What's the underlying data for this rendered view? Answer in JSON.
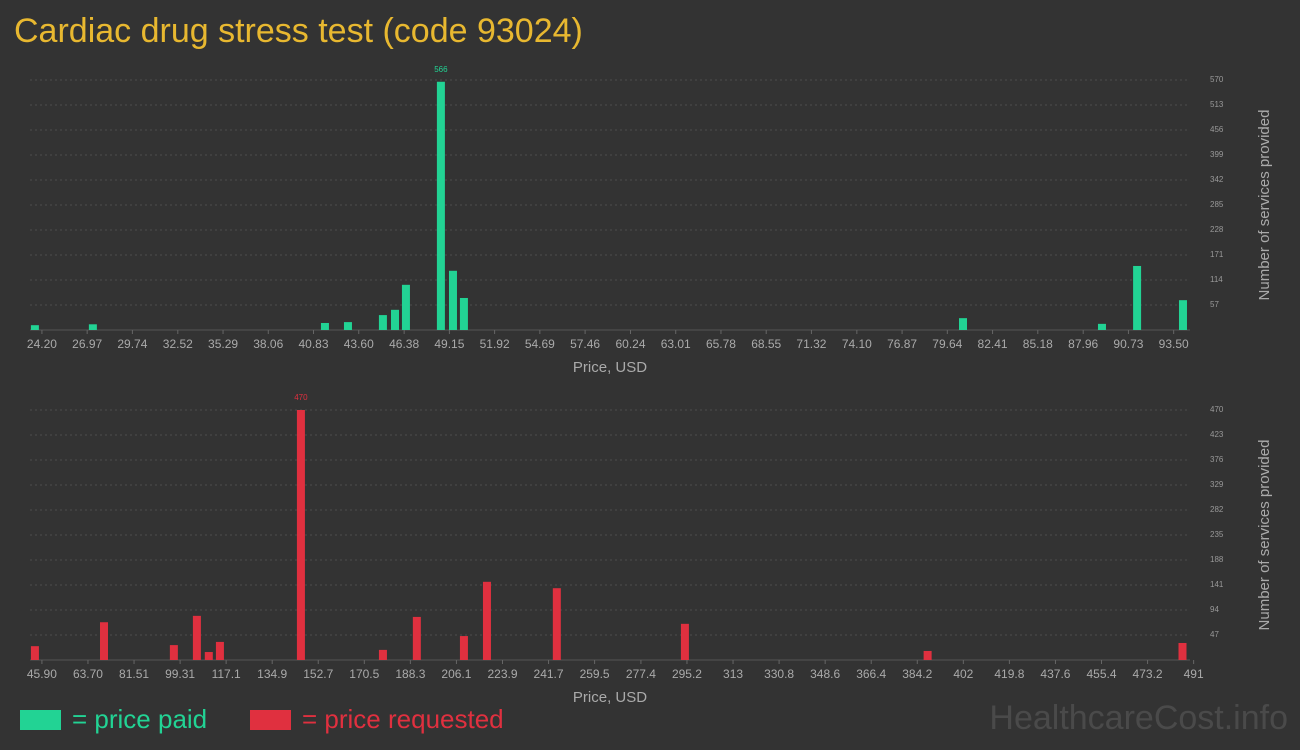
{
  "title": "Cardiac drug stress test (code 93024)",
  "watermark": "HealthcareCost.info",
  "chart_data": [
    {
      "type": "bar",
      "xlabel": "Price, USD",
      "ylabel": "Number of services provided",
      "grid": true,
      "x": [
        23.77,
        27.32,
        41.53,
        42.94,
        45.08,
        45.82,
        46.49,
        48.63,
        49.37,
        50.04,
        80.6,
        89.11,
        91.26,
        94.07
      ],
      "series": [
        {
          "name": "= price paid",
          "color": "#22d394",
          "values": [
            11,
            13,
            16,
            18,
            34,
            46,
            103,
            566,
            135,
            73,
            27,
            14,
            146,
            68
          ]
        }
      ],
      "xlim": [
        23.47,
        94.5
      ],
      "xticks": [
        {
          "value": 24.2,
          "label": "24.20"
        },
        26.97,
        29.74,
        32.52,
        35.29,
        38.06,
        40.83,
        {
          "value": 43.6,
          "label": "43.60"
        },
        46.38,
        49.15,
        51.92,
        54.69,
        57.46,
        60.24,
        63.01,
        65.78,
        68.55,
        71.32,
        {
          "value": 74.1,
          "label": "74.10"
        },
        76.87,
        79.64,
        82.41,
        85.18,
        87.96,
        90.73,
        {
          "value": 93.5,
          "label": "93.50"
        }
      ],
      "ylim": [
        0,
        570
      ],
      "yticks": [
        57,
        114,
        171,
        228,
        285,
        342,
        399,
        456,
        513,
        570
      ]
    },
    {
      "type": "bar",
      "xlabel": "Price, USD",
      "ylabel": "Number of services provided",
      "grid": true,
      "x": [
        43.2,
        69.9,
        96.9,
        105.8,
        110.4,
        114.7,
        146.0,
        177.7,
        190.8,
        209.0,
        217.9,
        244.9,
        294.4,
        388.2,
        486.7
      ],
      "series": [
        {
          "name": "= price requested",
          "color": "#e0303f",
          "values": [
            26,
            71,
            28,
            83,
            15,
            34,
            470,
            19,
            81,
            45,
            147,
            135,
            68,
            17,
            32
          ]
        }
      ],
      "xlim": [
        41.3,
        489.6
      ],
      "xticks": [
        {
          "value": 45.9,
          "label": "45.90"
        },
        {
          "value": 63.7,
          "label": "63.70"
        },
        81.51,
        99.31,
        117.1,
        134.9,
        152.7,
        170.5,
        188.3,
        206.1,
        223.9,
        241.7,
        259.5,
        277.4,
        295.2,
        313,
        330.8,
        348.6,
        366.4,
        384.2,
        402,
        419.8,
        437.6,
        455.4,
        473.2,
        491
      ],
      "ylim": [
        0,
        470
      ],
      "yticks": [
        47,
        94,
        141,
        188,
        235,
        282,
        329,
        376,
        423,
        470
      ]
    }
  ]
}
